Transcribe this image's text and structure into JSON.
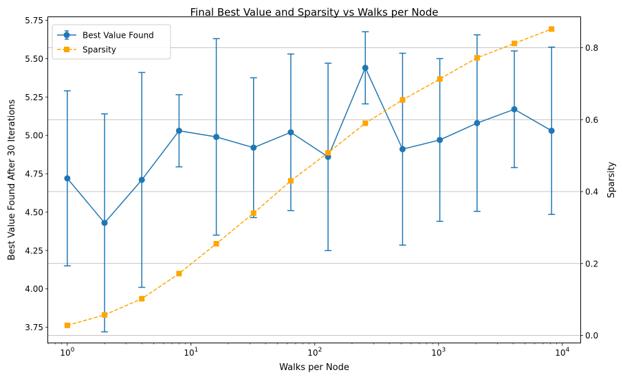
{
  "chart_data": {
    "type": "line",
    "title": "Final Best Value and Sparsity vs Walks per Node",
    "xlabel": "Walks per Node",
    "ylabel_left": "Best Value Found After 30 Iterations",
    "ylabel_right": "Sparsity",
    "x_scale": "log",
    "xlim": [
      0.7,
      14000
    ],
    "ylim_left": [
      3.65,
      5.77
    ],
    "ylim_right": [
      -0.02,
      0.885
    ],
    "x_ticks": [
      {
        "value": 1,
        "base": "10",
        "exp": "0"
      },
      {
        "value": 10,
        "base": "10",
        "exp": "1"
      },
      {
        "value": 100,
        "base": "10",
        "exp": "2"
      },
      {
        "value": 1000,
        "base": "10",
        "exp": "3"
      },
      {
        "value": 10000,
        "base": "10",
        "exp": "4"
      }
    ],
    "y_ticks_left": [
      {
        "value": 3.75,
        "label": "3.75"
      },
      {
        "value": 4.0,
        "label": "4.00"
      },
      {
        "value": 4.25,
        "label": "4.25"
      },
      {
        "value": 4.5,
        "label": "4.50"
      },
      {
        "value": 4.75,
        "label": "4.75"
      },
      {
        "value": 5.0,
        "label": "5.00"
      },
      {
        "value": 5.25,
        "label": "5.25"
      },
      {
        "value": 5.5,
        "label": "5.50"
      },
      {
        "value": 5.75,
        "label": "5.75"
      }
    ],
    "y_ticks_right": [
      {
        "value": 0.0,
        "label": "0.0"
      },
      {
        "value": 0.2,
        "label": "0.2"
      },
      {
        "value": 0.4,
        "label": "0.4"
      },
      {
        "value": 0.6,
        "label": "0.6"
      },
      {
        "value": 0.8,
        "label": "0.8"
      }
    ],
    "grid": "right-axis horizontal",
    "legend_position": "top-left",
    "x": [
      1,
      2,
      4,
      8,
      16,
      32,
      64,
      128,
      256,
      512,
      1024,
      2048,
      4096,
      8192
    ],
    "series": [
      {
        "name": "Best Value Found",
        "axis": "left",
        "color": "#1f77b4",
        "marker": "circle",
        "linestyle": "solid",
        "values": [
          4.72,
          4.43,
          4.71,
          5.03,
          4.99,
          4.92,
          5.02,
          4.86,
          5.44,
          4.91,
          4.97,
          5.08,
          5.17,
          5.03
        ],
        "error": [
          0.57,
          0.71,
          0.7,
          0.235,
          0.64,
          0.455,
          0.51,
          0.61,
          0.235,
          0.625,
          0.53,
          0.575,
          0.38,
          0.545
        ]
      },
      {
        "name": "Sparsity",
        "axis": "right",
        "color": "#ffa500",
        "marker": "square",
        "linestyle": "dashed",
        "values": [
          0.028,
          0.057,
          0.102,
          0.172,
          0.255,
          0.34,
          0.43,
          0.508,
          0.59,
          0.655,
          0.713,
          0.772,
          0.812,
          0.852
        ]
      }
    ]
  }
}
